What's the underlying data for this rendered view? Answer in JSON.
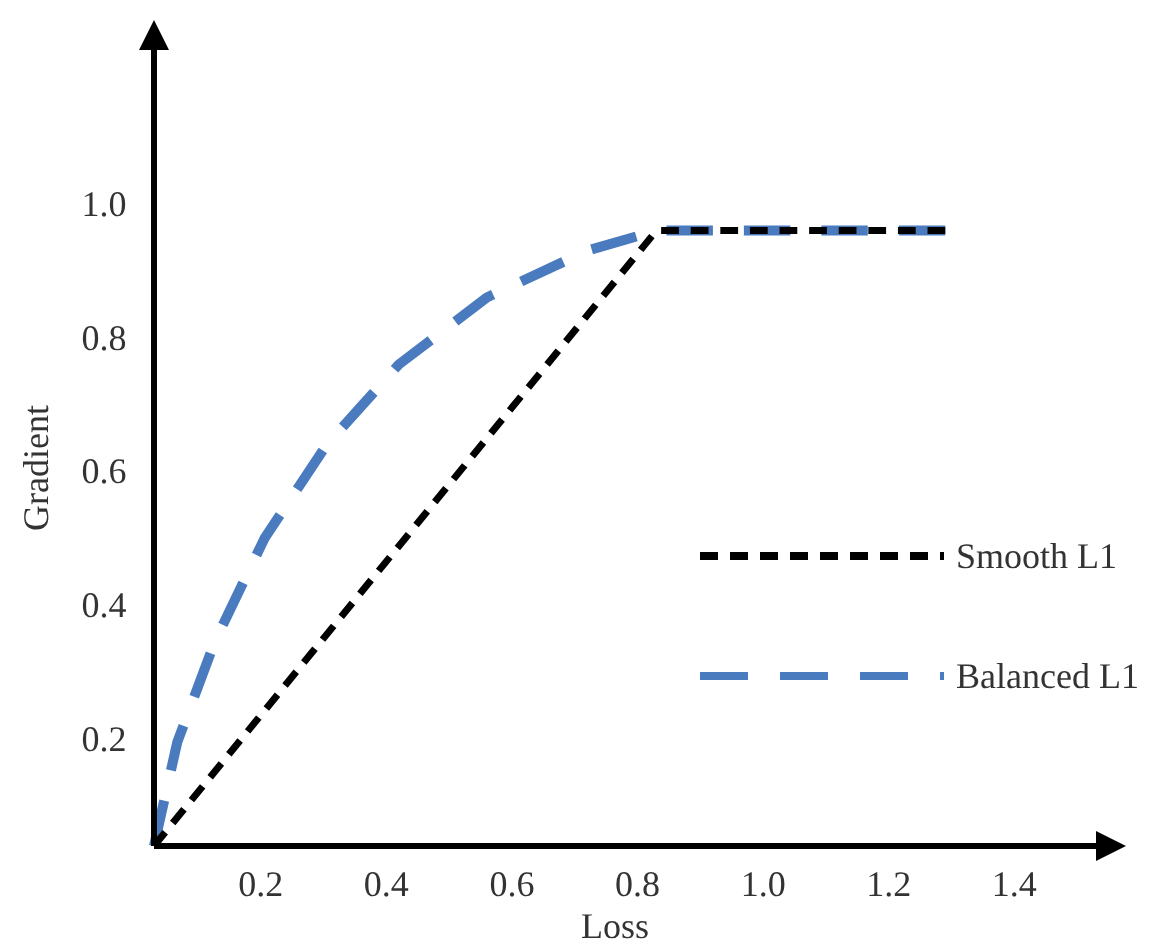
{
  "chart_data": {
    "type": "line",
    "xlabel": "Loss",
    "ylabel": "Gradient",
    "xlim": [
      0.03,
      1.53
    ],
    "ylim": [
      0.04,
      1.23
    ],
    "xticks": [
      0.2,
      0.4,
      0.6,
      0.8,
      {
        "value": 1.0,
        "label": "1.0"
      },
      1.2,
      1.4
    ],
    "yticks": [
      0.2,
      0.4,
      0.6,
      0.8,
      {
        "value": 1.0,
        "label": "1.0"
      }
    ],
    "grid": false,
    "legend": "right",
    "marker": "none",
    "line_style": "dashed",
    "series": [
      {
        "name": "Smooth L1",
        "color": "#000000",
        "x": [
          0.03,
          0.83,
          1.29
        ],
        "values": [
          0.04,
          0.96,
          0.96
        ]
      },
      {
        "name": "Balanced L1",
        "color": "#4a7bbf",
        "x": [
          0.03,
          0.067,
          0.127,
          0.206,
          0.305,
          0.42,
          0.56,
          0.72,
          0.83,
          1.29
        ],
        "values": [
          0.04,
          0.195,
          0.346,
          0.5,
          0.64,
          0.76,
          0.86,
          0.93,
          0.96,
          0.96
        ]
      }
    ]
  }
}
